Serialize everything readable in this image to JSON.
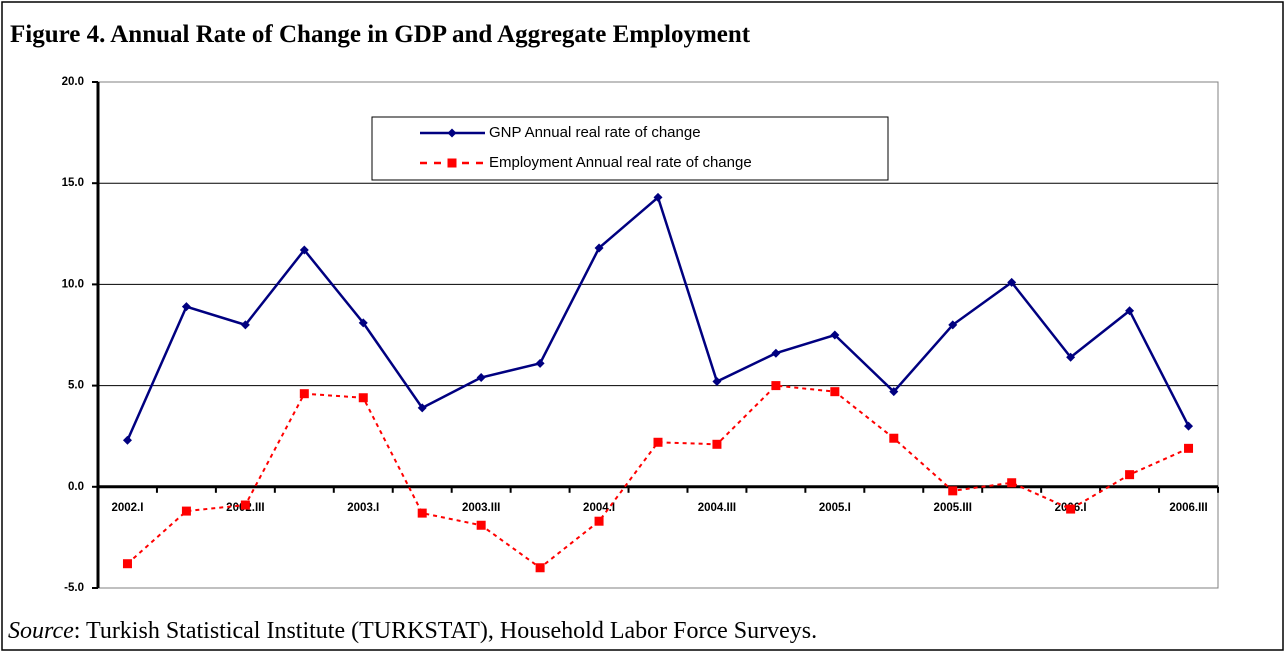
{
  "chart_data": {
    "type": "line",
    "title": "Figure 4. Annual Rate of Change in GDP and Aggregate Employment",
    "source_label": "Source",
    "source_text": ": Turkish Statistical Institute (TURKSTAT), Household Labor Force Surveys.",
    "categories": [
      "2002.I",
      null,
      "2002.III",
      null,
      "2003.I",
      null,
      "2003.III",
      null,
      "2004.I",
      null,
      "2004.III",
      null,
      "2005.I",
      null,
      "2005.III",
      null,
      "2006.I",
      null,
      "2006.III"
    ],
    "series": [
      {
        "name": "GNP Annual real rate of change",
        "color": "#000080",
        "marker": "diamond",
        "dashed": false,
        "values": [
          2.3,
          8.9,
          8.0,
          11.7,
          8.1,
          3.9,
          5.4,
          6.1,
          11.8,
          14.3,
          5.2,
          6.6,
          7.5,
          4.7,
          8.0,
          10.1,
          6.4,
          8.7,
          3.0
        ]
      },
      {
        "name": "Employment Annual real rate of change",
        "color": "#ff0000",
        "marker": "square",
        "dashed": true,
        "values": [
          -3.8,
          -1.2,
          -0.9,
          4.6,
          4.4,
          -1.3,
          -1.9,
          -4.0,
          -1.7,
          2.2,
          2.1,
          5.0,
          4.7,
          2.4,
          -0.2,
          0.2,
          -1.1,
          0.6,
          1.9
        ]
      }
    ],
    "ylim": [
      -5,
      20
    ],
    "yticks": [
      {
        "value": -5,
        "label": "-5.0"
      },
      {
        "value": 0,
        "label": "0.0"
      },
      {
        "value": 5,
        "label": "5.0"
      },
      {
        "value": 10,
        "label": "10.0"
      },
      {
        "value": 15,
        "label": "15.0"
      },
      {
        "value": 20,
        "label": "20.0"
      }
    ],
    "grid": true
  }
}
